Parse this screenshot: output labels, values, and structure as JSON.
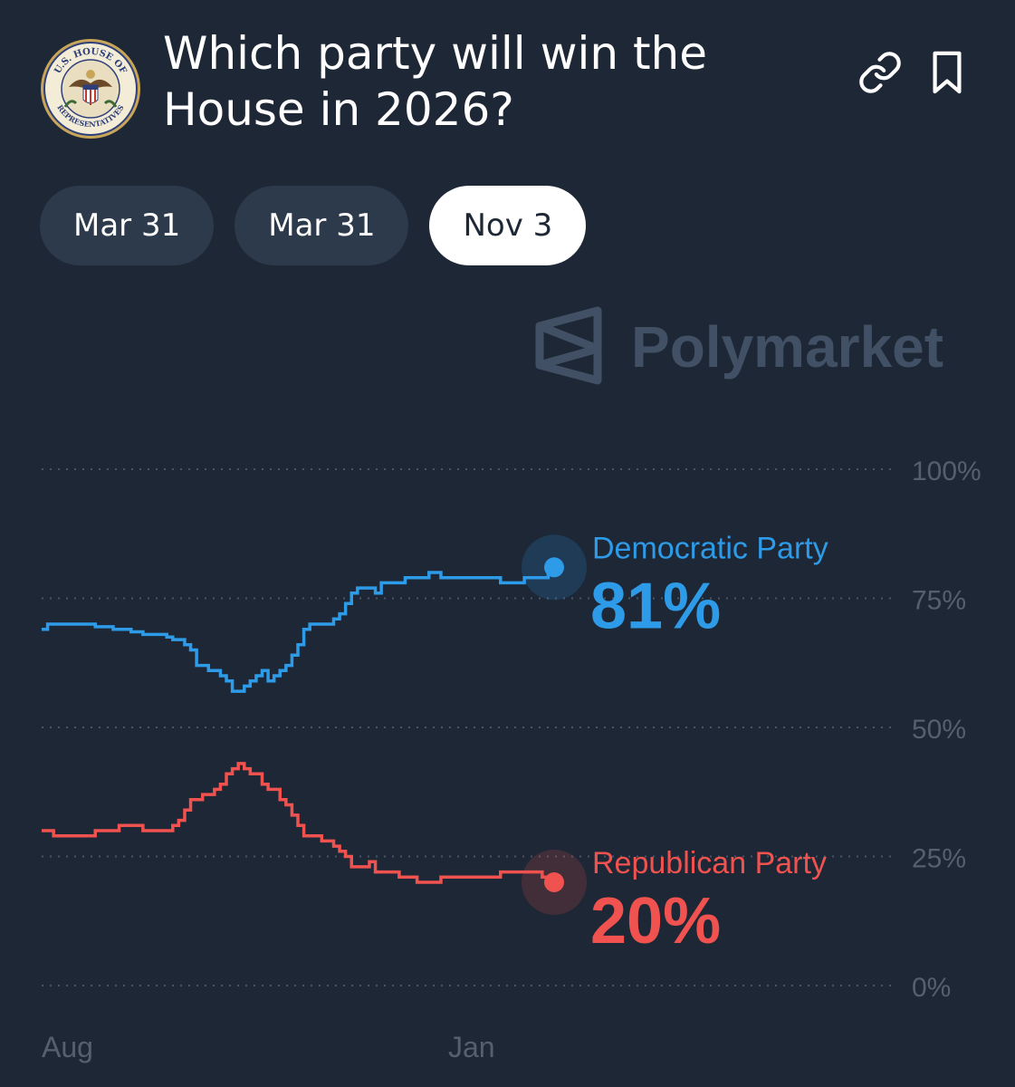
{
  "header": {
    "title": "Which party will win the House in 2026?",
    "logo_text_top": "U.S. HOUSE OF",
    "logo_text_bottom": "REPRESENTATIVES",
    "link_icon": "link-icon",
    "bookmark_icon": "bookmark-icon"
  },
  "tabs": [
    {
      "label": "Mar 31",
      "active": false
    },
    {
      "label": "Mar 31",
      "active": false
    },
    {
      "label": "Nov 3",
      "active": true
    }
  ],
  "watermark": "Polymarket",
  "colors": {
    "background": "#1d2735",
    "democratic": "#2e9be8",
    "republican": "#f0524f",
    "grid": "#4a5667",
    "axis_text": "#56606d"
  },
  "chart_data": {
    "type": "line",
    "x_labels": [
      "Aug",
      "Jan"
    ],
    "ylim": [
      0,
      100
    ],
    "y_ticks": [
      "100%",
      "75%",
      "50%",
      "25%",
      "0%"
    ],
    "y_tick_values": [
      100,
      75,
      50,
      25,
      0
    ],
    "grid": true,
    "series": [
      {
        "name": "Democratic Party",
        "current_label": "81%",
        "color": "#2e9be8",
        "values": [
          69,
          70,
          70,
          70,
          70,
          70,
          70,
          70,
          70,
          69.5,
          69.5,
          69.5,
          69,
          69,
          69,
          68.5,
          68.5,
          68,
          68,
          68,
          68,
          67.5,
          67,
          67,
          66,
          65,
          62,
          62,
          61,
          61,
          60,
          59,
          57,
          57,
          58,
          59,
          60,
          61,
          59,
          60,
          61,
          62,
          64,
          66,
          69,
          70,
          70,
          70,
          70,
          71,
          72,
          74,
          76,
          77,
          77,
          77,
          76,
          78,
          78,
          78,
          78,
          79,
          79,
          79,
          79,
          80,
          80,
          79,
          79,
          79,
          79,
          79,
          79,
          79,
          79,
          79,
          79,
          78,
          78,
          78,
          78,
          79,
          79,
          79,
          79,
          80,
          81
        ]
      },
      {
        "name": "Republican Party",
        "current_label": "20%",
        "color": "#f0524f",
        "values": [
          30,
          30,
          29,
          29,
          29,
          29,
          29,
          29,
          29,
          30,
          30,
          30,
          30,
          31,
          31,
          31,
          31,
          30,
          30,
          30,
          30,
          30,
          31,
          32,
          34,
          36,
          36,
          37,
          37,
          38,
          39,
          41,
          42,
          43,
          42,
          41,
          41,
          39,
          38,
          38,
          36,
          35,
          33,
          31,
          29,
          29,
          29,
          28,
          28,
          27,
          26,
          25,
          23,
          23,
          23,
          24,
          22,
          22,
          22,
          22,
          21,
          21,
          21,
          20,
          20,
          20,
          20,
          21,
          21,
          21,
          21,
          21,
          21,
          21,
          21,
          21,
          21,
          22,
          22,
          22,
          22,
          22,
          22,
          22,
          21,
          21,
          20
        ]
      }
    ]
  }
}
